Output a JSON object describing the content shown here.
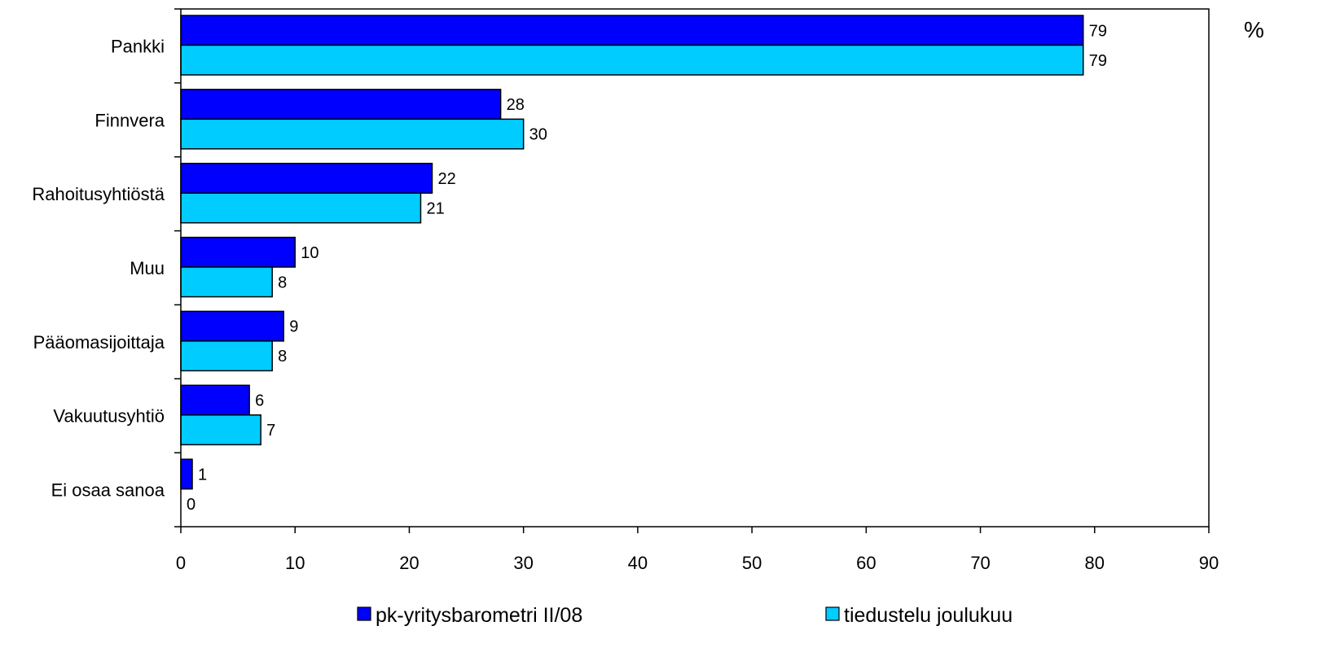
{
  "chart_data": {
    "type": "bar",
    "orientation": "horizontal",
    "categories": [
      "Pankki",
      "Finnvera",
      "Rahoitusyhtiöstä",
      "Muu",
      "Pääomasijoittaja",
      "Vakuutusyhtiö",
      "Ei osaa sanoa"
    ],
    "series": [
      {
        "name": "pk-yritysbarometri II/08",
        "values": [
          79,
          28,
          22,
          10,
          9,
          6,
          1
        ],
        "color": "#0000FF"
      },
      {
        "name": "tiedustelu joulukuu",
        "values": [
          79,
          30,
          21,
          8,
          8,
          7,
          0
        ],
        "color": "#00CCFF"
      }
    ],
    "xlim": [
      0,
      90
    ],
    "xticks": [
      0,
      10,
      20,
      30,
      40,
      50,
      60,
      70,
      80,
      90
    ],
    "unit_label": "%",
    "title": "",
    "xlabel": "",
    "ylabel": "",
    "grid": false,
    "legend_position": "bottom"
  }
}
